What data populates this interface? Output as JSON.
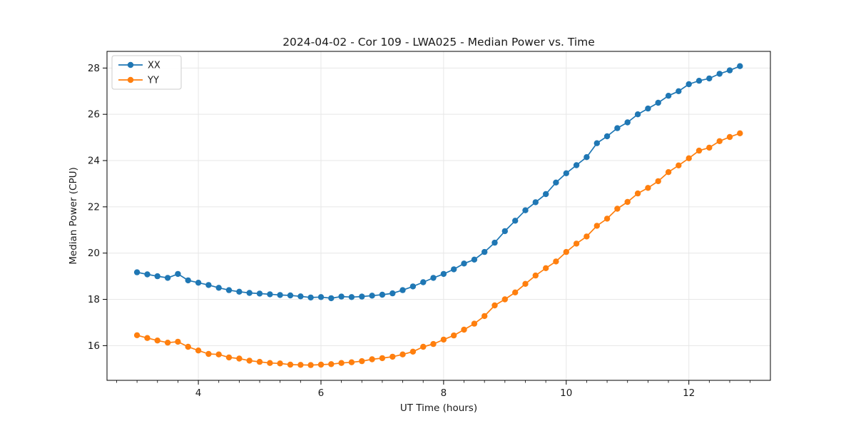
{
  "chart_data": {
    "type": "line",
    "title": "2024-04-02 - Cor 109 - LWA025 - Median Power vs. Time",
    "xlabel": "UT Time (hours)",
    "ylabel": "Median Power (CPU)",
    "xlim": [
      2.51,
      13.33
    ],
    "ylim": [
      14.5,
      28.72
    ],
    "xticks": [
      4,
      6,
      8,
      10,
      12
    ],
    "yticks": [
      16,
      18,
      20,
      22,
      24,
      26,
      28
    ],
    "x_minor_step": 0.33333,
    "grid": true,
    "legend_position": "upper left",
    "background": "#ffffff",
    "grid_color": "#e7e7e7",
    "spine_color": "#000000",
    "x": [
      3.0,
      3.167,
      3.333,
      3.5,
      3.667,
      3.833,
      4.0,
      4.167,
      4.333,
      4.5,
      4.667,
      4.833,
      5.0,
      5.167,
      5.333,
      5.5,
      5.667,
      5.833,
      6.0,
      6.167,
      6.333,
      6.5,
      6.667,
      6.833,
      7.0,
      7.167,
      7.333,
      7.5,
      7.667,
      7.833,
      8.0,
      8.167,
      8.333,
      8.5,
      8.667,
      8.833,
      9.0,
      9.167,
      9.333,
      9.5,
      9.667,
      9.833,
      10.0,
      10.167,
      10.333,
      10.5,
      10.667,
      10.833,
      11.0,
      11.167,
      11.333,
      11.5,
      11.667,
      11.833,
      12.0,
      12.167,
      12.333,
      12.5,
      12.667,
      12.833
    ],
    "series": [
      {
        "name": "XX",
        "color": "#1f77b4",
        "values": [
          19.17,
          19.08,
          19.0,
          18.93,
          19.1,
          18.82,
          18.72,
          18.62,
          18.5,
          18.4,
          18.33,
          18.28,
          18.25,
          18.22,
          18.19,
          18.17,
          18.13,
          18.08,
          18.1,
          18.05,
          18.12,
          18.1,
          18.12,
          18.16,
          18.2,
          18.26,
          18.4,
          18.56,
          18.74,
          18.93,
          19.1,
          19.3,
          19.55,
          19.72,
          20.05,
          20.45,
          20.95,
          21.4,
          21.85,
          22.2,
          22.55,
          23.05,
          23.45,
          23.8,
          24.15,
          24.75,
          25.05,
          25.4,
          25.65,
          26.0,
          26.25,
          26.5,
          26.8,
          27.0,
          27.3,
          27.45,
          27.55,
          27.75,
          27.9,
          28.08
        ]
      },
      {
        "name": "YY",
        "color": "#ff7f0e",
        "values": [
          16.45,
          16.33,
          16.22,
          16.13,
          16.17,
          15.95,
          15.79,
          15.64,
          15.62,
          15.49,
          15.44,
          15.35,
          15.3,
          15.25,
          15.23,
          15.18,
          15.17,
          15.16,
          15.18,
          15.2,
          15.25,
          15.28,
          15.33,
          15.41,
          15.46,
          15.52,
          15.62,
          15.74,
          15.95,
          16.07,
          16.26,
          16.44,
          16.69,
          16.95,
          17.28,
          17.74,
          18.0,
          18.3,
          18.67,
          19.03,
          19.35,
          19.64,
          20.05,
          20.41,
          20.72,
          21.18,
          21.49,
          21.92,
          22.21,
          22.58,
          22.82,
          23.11,
          23.5,
          23.79,
          24.1,
          24.43,
          24.56,
          24.84,
          25.02,
          25.18
        ]
      }
    ]
  }
}
